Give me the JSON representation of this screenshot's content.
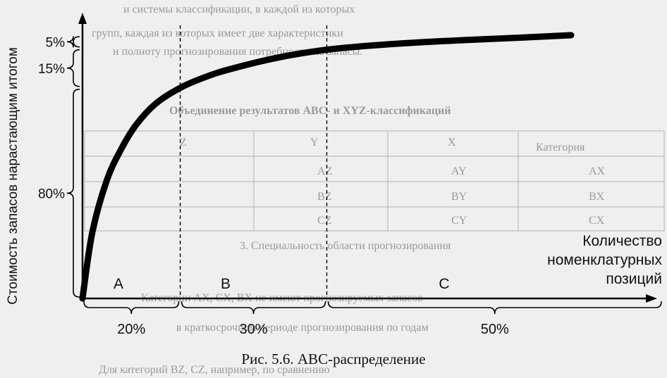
{
  "chart_data": {
    "type": "area",
    "title": "",
    "xlabel": "Количество номенклатурных позиций",
    "ylabel": "Стоимость запасов нарастающим итогом",
    "y_brackets": [
      {
        "label": "80%",
        "from": 0,
        "to": 80
      },
      {
        "label": "15%",
        "from": 80,
        "to": 95
      },
      {
        "label": "5%",
        "from": 95,
        "to": 100
      }
    ],
    "x_brackets": [
      {
        "label": "20%",
        "from": 0,
        "to": 20
      },
      {
        "label": "30%",
        "from": 20,
        "to": 50
      },
      {
        "label": "50%",
        "from": 50,
        "to": 100
      }
    ],
    "zones": [
      {
        "name": "A",
        "from": 0,
        "to": 20
      },
      {
        "name": "B",
        "from": 20,
        "to": 50
      },
      {
        "name": "C",
        "from": 50,
        "to": 100
      }
    ],
    "series": [
      {
        "x": [
          0,
          2,
          5,
          8,
          11,
          15,
          20,
          25,
          30,
          40,
          50,
          60,
          70,
          80,
          90,
          100
        ],
        "y": [
          0,
          25,
          45,
          57,
          66,
          74,
          80,
          84,
          87,
          91.5,
          94.5,
          96.2,
          97.4,
          98.3,
          99.1,
          100
        ]
      }
    ],
    "xlim": [
      0,
      100
    ],
    "ylim": [
      0,
      100
    ],
    "grid": false
  },
  "axis_labels": {
    "x_line1": "Количество",
    "x_line2": "номенклатурных",
    "x_line3": "позиций",
    "y": "Стоимость запасов нарастающим итогом"
  },
  "caption": "Рис. 5.6. АВС-распределение",
  "background_text": [
    "и системы классификации, в каждой из которых",
    "групп, каждая из которых имеет две характеристики",
    "и полноту прогнозирования потребности на запасы.",
    "Объединение результатов АВС- и XYZ-классификаций",
    "Категория",
    "X",
    "Y",
    "Z",
    "AX",
    "AY",
    "AZ",
    "BX",
    "BY",
    "BZ",
    "CX",
    "CY",
    "CZ",
    "3. Специальность области прогнозирования",
    "Категории AX, CX, BX не имеют прогнозируемых запасов",
    "в краткосрочном периоде прогнозирования по годам",
    "Для категорий BZ, CZ, например, по сравнению"
  ]
}
